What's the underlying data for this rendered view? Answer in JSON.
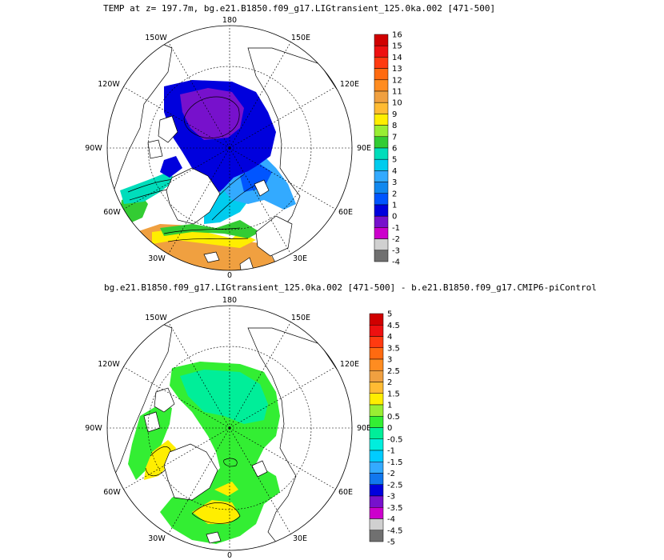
{
  "panel_top": {
    "title": "TEMP at z= 197.7m, bg.e21.B1850.f09_g17.LIGtransient_125.0ka.002 [471-500]",
    "longitudes": {
      "lon180": "180",
      "lon150w": "150W",
      "lon150e": "150E",
      "lon120w": "120W",
      "lon120e": "120E",
      "lon90w": "90W",
      "lon90e": "90E",
      "lon60w": "60W",
      "lon60e": "60E",
      "lon30w": "30W",
      "lon30e": "30E",
      "lon0": "0"
    },
    "colorbar": {
      "labels": [
        "16",
        "15",
        "14",
        "13",
        "12",
        "11",
        "10",
        "9",
        "8",
        "7",
        "6",
        "5",
        "4",
        "3",
        "2",
        "1",
        "0",
        "-1",
        "-2",
        "-3",
        "-4"
      ],
      "colors": [
        "#d00000",
        "#ee1010",
        "#ff3a10",
        "#ff6a10",
        "#ff8c20",
        "#f0a040",
        "#ffbb33",
        "#ffee00",
        "#99ee33",
        "#33cc33",
        "#00ddbb",
        "#00ccee",
        "#33aaff",
        "#1188ee",
        "#0055ff",
        "#0000dd",
        "#7711cc",
        "#cc00cc",
        "#d0d0d0",
        "#707070"
      ]
    }
  },
  "panel_bottom": {
    "title": "bg.e21.B1850.f09_g17.LIGtransient_125.0ka.002 [471-500] - b.e21.B1850.f09_g17.CMIP6-piControl",
    "longitudes": {
      "lon180": "180",
      "lon150w": "150W",
      "lon150e": "150E",
      "lon120w": "120W",
      "lon120e": "120E",
      "lon90w": "90W",
      "lon90e": "90E",
      "lon60w": "60W",
      "lon60e": "60E",
      "lon30w": "30W",
      "lon30e": "30E",
      "lon0": "0"
    },
    "colorbar": {
      "labels": [
        "5",
        "4.5",
        "4",
        "3.5",
        "3",
        "2.5",
        "2",
        "1.5",
        "1",
        "0.5",
        "0",
        "-0.5",
        "-1",
        "-1.5",
        "-2",
        "-2.5",
        "-3",
        "-3.5",
        "-4",
        "-4.5",
        "-5"
      ],
      "colors": [
        "#d00000",
        "#ee1010",
        "#ff3a10",
        "#ff6a10",
        "#ff8c20",
        "#f0a040",
        "#ffbb33",
        "#ffee00",
        "#99ee33",
        "#33ee33",
        "#00ee99",
        "#00eedd",
        "#00ccff",
        "#33aaff",
        "#1177ee",
        "#0000dd",
        "#7711cc",
        "#cc00cc",
        "#d0d0d0",
        "#707070"
      ]
    }
  }
}
